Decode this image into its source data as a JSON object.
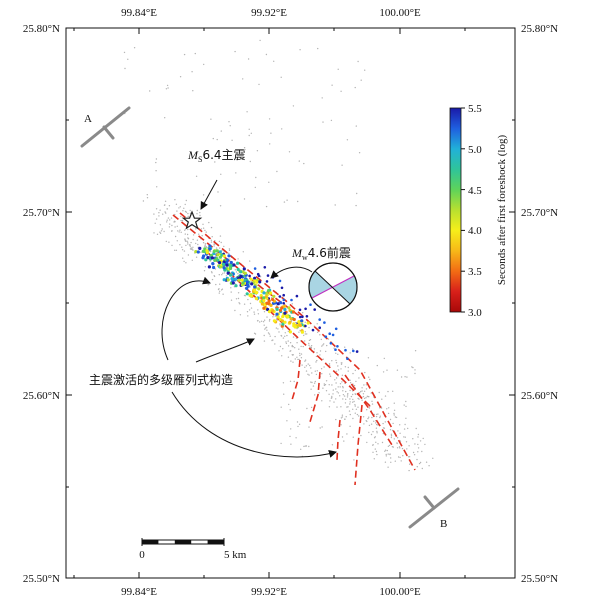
{
  "map": {
    "lon_ticks": [
      "99.84°E",
      "99.92°E",
      "100.00°E"
    ],
    "lat_ticks": [
      "25.80°N",
      "25.70°N",
      "25.60°N",
      "25.50°N"
    ],
    "profile_start": "A",
    "profile_end": "B",
    "mainshock_label": {
      "m": "M",
      "sub": "S",
      "rest": "6.4主震"
    },
    "foreshock_label": {
      "m": "M",
      "sub": "w",
      "rest": "4.6前震"
    },
    "fault_annotation": "主震激活的多级雁列式构造",
    "scale_bar": {
      "start": "0",
      "end": "5 km"
    },
    "colorbar": {
      "title": "Seconds after first foreshock (log)",
      "ticks": [
        "5.5",
        "5.0",
        "4.5",
        "4.0",
        "3.5",
        "3.0"
      ],
      "colors": [
        "#1a1aa8",
        "#1f5fe0",
        "#21b0d8",
        "#2fc49a",
        "#5ed35a",
        "#b8e030",
        "#f6ee1a",
        "#f7b818",
        "#f26c14",
        "#d8201a",
        "#a80808"
      ]
    },
    "colors": {
      "background_seismicity": "#b4b4b4",
      "fault_dash": "#e03020",
      "profile_line": "#8a8a8a",
      "focal_fill": "#a9d5e3",
      "focal_nodal": "#c030c0"
    }
  }
}
